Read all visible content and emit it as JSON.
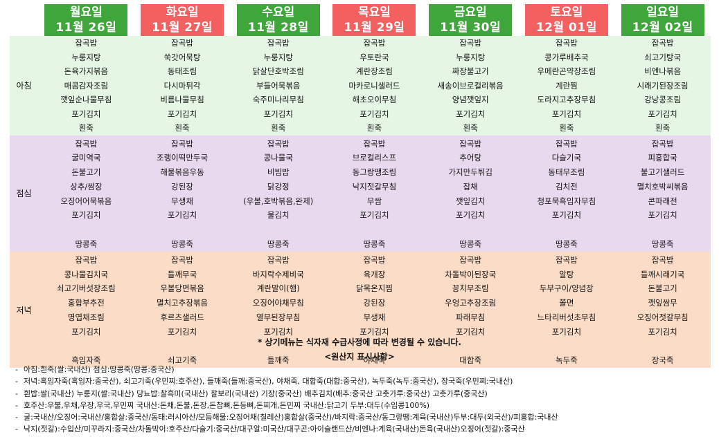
{
  "days": [
    {
      "name": "월요일",
      "date": "11월 26일",
      "color": "#3ea63a"
    },
    {
      "name": "화요일",
      "date": "11월 27일",
      "color": "#f2605f"
    },
    {
      "name": "수요일",
      "date": "11월 28일",
      "color": "#3ea63a"
    },
    {
      "name": "목요일",
      "date": "11월 29일",
      "color": "#f2605f"
    },
    {
      "name": "금요일",
      "date": "11월 30일",
      "color": "#3ea63a"
    },
    {
      "name": "토요일",
      "date": "12월 01일",
      "color": "#f2605f"
    },
    {
      "name": "일요일",
      "date": "12월 02일",
      "color": "#3ea63a"
    }
  ],
  "meals": [
    {
      "label": "아침",
      "color": "#e6f6e5",
      "menus": [
        [
          "잡곡밥",
          "누룽지탕",
          "돈육가지볶음",
          "매콤감자조림",
          "깻잎순나물무침",
          "포기김치",
          "흰죽"
        ],
        [
          "잡곡밥",
          "쑥갓어묵탕",
          "동태조림",
          "다시마튀각",
          "비름나물무침",
          "포기김치",
          "흰죽"
        ],
        [
          "잡곡밥",
          "누룽지탕",
          "닭살단호박조림",
          "부들어묵볶음",
          "숙주미나리무침",
          "포기김치",
          "흰죽"
        ],
        [
          "잡곡밥",
          "우토란국",
          "계란장조림",
          "마카로니샐러드",
          "해초오이무침",
          "포기김치",
          "흰죽"
        ],
        [
          "잡곡밥",
          "누룽지탕",
          "짜장불고기",
          "새송이브로컬리볶음",
          "양념깻잎지",
          "포기김치",
          "흰죽"
        ],
        [
          "잡곡밥",
          "콩가루배추국",
          "우메란곤약장조림",
          "계란찜",
          "도라지고추장무침",
          "포기김치",
          "흰죽"
        ],
        [
          "잡곡밥",
          "쇠고기탕국",
          "비엔나볶음",
          "시래기된장조림",
          "강낭콩조림",
          "포기김치",
          "흰죽"
        ]
      ]
    },
    {
      "label": "점심",
      "color": "#e9d9ef",
      "menus": [
        [
          "잡곡밥",
          "굴미역국",
          "돈불고기",
          "상추/쌈장",
          "오징어어묵볶음",
          "포기김치",
          "",
          "땅콩죽"
        ],
        [
          "잡곡밥",
          "조랭이떡만두국",
          "해물볶음우동",
          "강된장",
          "무생채",
          "포기김치",
          "",
          "땅콩죽"
        ],
        [
          "잡곡밥",
          "콩나물국",
          "비빔밥",
          "닭강정",
          "(우볼,호박볶음,완제)",
          "물김치",
          "",
          "땅콩죽"
        ],
        [
          "잡곡밥",
          "브로컬리스프",
          "동그랑땡조림",
          "낙지젓갈무침",
          "무쌈",
          "포기김치",
          "",
          "땅콩죽"
        ],
        [
          "잡곡밥",
          "추어탕",
          "가지만두튀김",
          "잡채",
          "깻잎김치",
          "포기김치",
          "",
          "땅콩죽"
        ],
        [
          "잡곡밥",
          "다슬기국",
          "동태무조림",
          "김치전",
          "청포묵흑임자무침",
          "포기김치",
          "",
          "땅콩죽"
        ],
        [
          "잡곡밥",
          "피홍합국",
          "불고기샐러드",
          "멸치호박씨볶음",
          "콘파래전",
          "포기김치",
          "",
          "땅콩죽"
        ]
      ]
    },
    {
      "label": "저녁",
      "color": "#fbdcc6",
      "menus": [
        [
          "잡곡밥",
          "콩나물김치국",
          "쇠고기버섯장조림",
          "홍합부추전",
          "명엽채조림",
          "포기김치",
          "",
          "흑임자죽"
        ],
        [
          "잡곡밥",
          "들깨무국",
          "우볼당면볶음",
          "멸치고추장볶음",
          "후르츠샐러드",
          "포기김치",
          "",
          "쇠고기죽"
        ],
        [
          "잡곡밥",
          "바지락수제비국",
          "계란말이(햄)",
          "오징어야채무침",
          "열무된장무침",
          "포기김치",
          "",
          "들깨죽"
        ],
        [
          "잡곡밥",
          "육개장",
          "닭목온지찜",
          "강된장",
          "무생채",
          "포기김치",
          "",
          "야채죽"
        ],
        [
          "잡곡밥",
          "차돌박이된장국",
          "꽁치무조림",
          "우엉고추장조림",
          "파래무침",
          "포기김치",
          "",
          "대합죽"
        ],
        [
          "잡곡밥",
          "알탕",
          "두부구이/양념장",
          "쫄면",
          "느타리버섯초무침",
          "포기김치",
          "",
          "녹두죽"
        ],
        [
          "잡곡밥",
          "들깨시래기국",
          "돈불고기",
          "깻잎쌈무",
          "오징어젓갈무침",
          "포기김치",
          "",
          "장국죽"
        ]
      ]
    }
  ],
  "notice": "* 상기메뉴는 식자재 수급사정에 따라 변경될 수 있습니다.",
  "origin_title": "<원산지 표시사항>",
  "origin_lines": [
    "아침:흰죽(쌀:국내산) 점심:땅콩죽(땅콩:중국산)",
    "저녁:흑임자죽(흑임자:중국산), 쇠고기죽(우민찌:호주산), 들깨죽(들깨:중국산), 야채죽, 대합죽(대합:중국산), 녹두죽(녹두:중국산), 장국죽(우민찌:국내산)",
    "흰밥:쌀(국내산) 누룽지(쌀:국내산) 당뇨밥:찰흑미(국내산) 찰보리(국내산) 기장(중국산) 배추김치(배추:중국산 고춧가루:중국산) 고춧가루(중국산)",
    "호주산:우불,우채,우장,우국,우민찌 국내산:돈채,돈불,돈장,돈찹뼈,돈등뼈,돈찌개,돈민찌 국내산:닭고기 두부:대두(수입콩100%)",
    "굴:국내산/오징어:국내산/홍합살:중국산/동태:러시아산/모듬해물:오징어채(칠레산)홍합살(중국산)/바지락:중국산/동그랑땡:계육(국내산)두부:대두(외국산)/피홍합:국내산",
    "낙지(젓갈):수입산/미꾸라지:중국산/차돌박이:호주산/다슬기:중국산/대구알:미국산/대구곤:아이슬랜드산/비엔나:계육(국내산)돈육(국내산)오징어(젓갈):중국산"
  ]
}
